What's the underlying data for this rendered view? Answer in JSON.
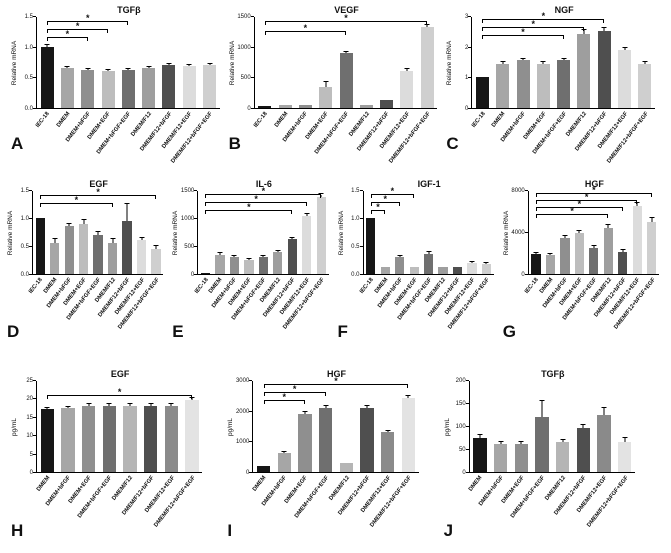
{
  "chart_data": [
    {
      "letter": "A",
      "type": "bar",
      "title": "TGFβ",
      "ylabel": "Relative mRNA",
      "ylim": [
        0,
        1.5
      ],
      "yticks": [
        "0.0",
        "0.5",
        "1.0",
        "1.5"
      ],
      "categories": [
        "IEC-18",
        "DMEM",
        "DMEM+bFGF",
        "DMEM+EGF",
        "DMEM+bFGF+EGF",
        "DMEM/F12",
        "DMEM/F12+bFGF",
        "DMEM/F12+EGF",
        "DMEM/F12+bFGF+EGF"
      ],
      "values": [
        1.0,
        0.65,
        0.62,
        0.6,
        0.62,
        0.65,
        0.7,
        0.68,
        0.7
      ],
      "errors": [
        0.02,
        0.02,
        0.02,
        0.02,
        0.02,
        0.02,
        0.02,
        0.02,
        0.02
      ],
      "colors": [
        "#161616",
        "#a6a6a6",
        "#8f8f8f",
        "#bdbdbd",
        "#6f6f6f",
        "#9e9e9e",
        "#4f4f4f",
        "#dcdcdc",
        "#cfcfcf"
      ],
      "brackets": [
        {
          "from": 0,
          "to": 4,
          "top": 4,
          "label": "*"
        },
        {
          "from": 0,
          "to": 3,
          "top": 12,
          "label": "*"
        },
        {
          "from": 0,
          "to": 2,
          "top": 20,
          "label": "*"
        }
      ]
    },
    {
      "letter": "B",
      "type": "bar",
      "title": "VEGF",
      "ylabel": "Relative mRNA",
      "ylim": [
        0,
        1500
      ],
      "yticks": [
        "0",
        "500",
        "1000",
        "1500"
      ],
      "categories": [
        "IEC-18",
        "DMEM",
        "DMEM+bFGF",
        "DMEM+EGF",
        "DMEM+bFGF+EGF",
        "DMEM/F12",
        "DMEM/F12+bFGF",
        "DMEM/F12+EGF",
        "DMEM/F12+bFGF+EGF"
      ],
      "values": [
        40,
        55,
        55,
        340,
        890,
        55,
        130,
        610,
        1320
      ],
      "errors": [
        5,
        5,
        5,
        90,
        25,
        5,
        10,
        20,
        30
      ],
      "colors": [
        "#161616",
        "#a6a6a6",
        "#8f8f8f",
        "#bdbdbd",
        "#6f6f6f",
        "#9e9e9e",
        "#4f4f4f",
        "#dcdcdc",
        "#cfcfcf"
      ],
      "brackets": [
        {
          "from": 0,
          "to": 8,
          "top": 4,
          "label": "*"
        },
        {
          "from": 0,
          "to": 4,
          "top": 14,
          "label": "*"
        }
      ]
    },
    {
      "letter": "C",
      "type": "bar",
      "title": "NGF",
      "ylabel": "Relative mRNA",
      "ylim": [
        0,
        3
      ],
      "yticks": [
        "0",
        "1",
        "2",
        "3"
      ],
      "categories": [
        "IEC-18",
        "DMEM",
        "DMEM+bFGF",
        "DMEM+EGF",
        "DMEM+bFGF+EGF",
        "DMEM/F12",
        "DMEM/F12+bFGF",
        "DMEM/F12+EGF",
        "DMEM/F12+bFGF+EGF"
      ],
      "values": [
        1.0,
        1.45,
        1.55,
        1.45,
        1.55,
        2.4,
        2.5,
        1.9,
        1.45
      ],
      "errors": [
        0.03,
        0.05,
        0.05,
        0.05,
        0.05,
        0.15,
        0.1,
        0.05,
        0.05
      ],
      "colors": [
        "#161616",
        "#a6a6a6",
        "#8f8f8f",
        "#bdbdbd",
        "#6f6f6f",
        "#9e9e9e",
        "#4f4f4f",
        "#dcdcdc",
        "#cfcfcf"
      ],
      "brackets": [
        {
          "from": 0,
          "to": 6,
          "top": 2,
          "label": "*"
        },
        {
          "from": 0,
          "to": 5,
          "top": 10,
          "label": "*"
        },
        {
          "from": 0,
          "to": 4,
          "top": 18,
          "label": "*"
        }
      ]
    },
    {
      "letter": "D",
      "type": "bar",
      "title": "EGF",
      "ylabel": "Relative mRNA",
      "ylim": [
        0,
        1.5
      ],
      "yticks": [
        "0.0",
        "0.5",
        "1.0",
        "1.5"
      ],
      "categories": [
        "IEC-18",
        "DMEM",
        "DMEM+bFGF",
        "DMEM+EGF",
        "DMEM+bFGF+EGF",
        "DMEM/F12",
        "DMEM/F12+bFGF",
        "DMEM/F12+EGF",
        "DMEM/F12+bFGF+EGF"
      ],
      "values": [
        1.0,
        0.55,
        0.85,
        0.9,
        0.7,
        0.55,
        0.95,
        0.6,
        0.45
      ],
      "errors": [
        0,
        0.07,
        0.05,
        0.06,
        0.05,
        0.08,
        0.3,
        0.05,
        0.05
      ],
      "colors": [
        "#161616",
        "#a6a6a6",
        "#8f8f8f",
        "#bdbdbd",
        "#6f6f6f",
        "#9e9e9e",
        "#4f4f4f",
        "#dcdcdc",
        "#cfcfcf"
      ],
      "brackets": [
        {
          "from": 0,
          "to": 8,
          "top": 4,
          "label": "*"
        },
        {
          "from": 0,
          "to": 5,
          "top": 12,
          "label": "*"
        }
      ]
    },
    {
      "letter": "E",
      "type": "bar",
      "title": "IL-6",
      "ylabel": "Relative mRNA",
      "ylim": [
        0,
        1500
      ],
      "yticks": [
        "0",
        "500",
        "1000",
        "1500"
      ],
      "categories": [
        "IEC-18",
        "DMEM",
        "DMEM+bFGF",
        "DMEM+EGF",
        "DMEM+bFGF+EGF",
        "DMEM/F12",
        "DMEM/F12+bFGF",
        "DMEM/F12+EGF",
        "DMEM/F12+bFGF+EGF"
      ],
      "values": [
        15,
        340,
        300,
        250,
        300,
        390,
        620,
        1040,
        1380
      ],
      "errors": [
        0,
        30,
        20,
        20,
        20,
        20,
        30,
        30,
        40
      ],
      "colors": [
        "#161616",
        "#a6a6a6",
        "#8f8f8f",
        "#bdbdbd",
        "#6f6f6f",
        "#9e9e9e",
        "#4f4f4f",
        "#dcdcdc",
        "#cfcfcf"
      ],
      "brackets": [
        {
          "from": 0,
          "to": 8,
          "top": 3,
          "label": "*"
        },
        {
          "from": 0,
          "to": 7,
          "top": 11,
          "label": "*"
        },
        {
          "from": 0,
          "to": 6,
          "top": 19,
          "label": "*"
        }
      ]
    },
    {
      "letter": "F",
      "type": "bar",
      "title": "IGF-1",
      "ylabel": "Relative mRNA",
      "ylim": [
        0,
        1.5
      ],
      "yticks": [
        "0.0",
        "0.5",
        "1.0",
        "1.5"
      ],
      "categories": [
        "IEC-18",
        "DMEM",
        "DMEM+bFGF",
        "DMEM+EGF",
        "DMEM+bFGF+EGF",
        "DMEM/F12",
        "DMEM/F12+bFGF",
        "DMEM/F12+EGF",
        "DMEM/F12+bFGF+EGF"
      ],
      "values": [
        1.0,
        0.12,
        0.3,
        0.13,
        0.35,
        0.13,
        0.13,
        0.2,
        0.18
      ],
      "errors": [
        0,
        0.01,
        0.03,
        0.01,
        0.04,
        0.01,
        0.01,
        0.02,
        0.02
      ],
      "colors": [
        "#161616",
        "#a6a6a6",
        "#8f8f8f",
        "#bdbdbd",
        "#6f6f6f",
        "#9e9e9e",
        "#4f4f4f",
        "#dcdcdc",
        "#cfcfcf"
      ],
      "brackets": [
        {
          "from": 0,
          "to": 3,
          "top": 3,
          "label": "*"
        },
        {
          "from": 0,
          "to": 2,
          "top": 11,
          "label": "*"
        },
        {
          "from": 0,
          "to": 1,
          "top": 19,
          "label": "*"
        }
      ]
    },
    {
      "letter": "G",
      "type": "bar",
      "title": "HGF",
      "ylabel": "Relative mRNA",
      "ylim": [
        0,
        8000
      ],
      "yticks": [
        "0",
        "4000",
        "8000"
      ],
      "categories": [
        "IEC-18",
        "DMEM",
        "DMEM+bFGF",
        "DMEM+EGF",
        "DMEM+bFGF+EGF",
        "DMEM/F12",
        "DMEM/F12+bFGF",
        "DMEM/F12+EGF",
        "DMEM/F12+bFGF+EGF"
      ],
      "values": [
        1900,
        1800,
        3400,
        3900,
        2500,
        4400,
        2100,
        6500,
        5000
      ],
      "errors": [
        100,
        100,
        200,
        200,
        150,
        300,
        150,
        300,
        300
      ],
      "colors": [
        "#161616",
        "#a6a6a6",
        "#8f8f8f",
        "#bdbdbd",
        "#6f6f6f",
        "#9e9e9e",
        "#4f4f4f",
        "#dcdcdc",
        "#cfcfcf"
      ],
      "brackets": [
        {
          "from": 0,
          "to": 8,
          "top": 2,
          "label": "*"
        },
        {
          "from": 0,
          "to": 7,
          "top": 9,
          "label": "*"
        },
        {
          "from": 0,
          "to": 6,
          "top": 16,
          "label": "*"
        },
        {
          "from": 0,
          "to": 5,
          "top": 23,
          "label": "*"
        }
      ]
    },
    {
      "letter": "H",
      "type": "bar",
      "title": "EGF",
      "ylabel": "pg/mL",
      "ylim": [
        0,
        25
      ],
      "yticks": [
        "0",
        "5",
        "10",
        "15",
        "20",
        "25"
      ],
      "categories": [
        "DMEM",
        "DMEM+bFGF",
        "DMEM+EGF",
        "DMEM+bFGF+EGF",
        "DMEM/F12",
        "DMEM/F12+bFGF",
        "DMEM/F12+EGF",
        "DMEM/F12+bFGF+EGF"
      ],
      "values": [
        17,
        17.5,
        18,
        18,
        18,
        18,
        18,
        19.5
      ],
      "errors": [
        0.3,
        0.3,
        0.4,
        0.4,
        0.4,
        0.4,
        0.4,
        0.5
      ],
      "colors": [
        "#161616",
        "#a6a6a6",
        "#8f8f8f",
        "#6f6f6f",
        "#b5b5b5",
        "#4f4f4f",
        "#8a8a8a",
        "#e3e3e3"
      ],
      "brackets": [
        {
          "from": 0,
          "to": 7,
          "top": 14,
          "label": "*"
        }
      ]
    },
    {
      "letter": "I",
      "type": "bar",
      "title": "HGF",
      "ylabel": "pg/mL",
      "ylim": [
        0,
        3000
      ],
      "yticks": [
        "0",
        "1000",
        "2000",
        "3000"
      ],
      "categories": [
        "DMEM",
        "DMEM+bFGF",
        "DMEM+EGF",
        "DMEM+bFGF+EGF",
        "DMEM/F12",
        "DMEM/F12+bFGF",
        "DMEM/F12+EGF",
        "DMEM/F12+bFGF+EGF"
      ],
      "values": [
        200,
        620,
        1900,
        2100,
        300,
        2100,
        1300,
        2400
      ],
      "errors": [
        20,
        40,
        60,
        60,
        20,
        60,
        50,
        80
      ],
      "colors": [
        "#161616",
        "#a6a6a6",
        "#8f8f8f",
        "#6f6f6f",
        "#b5b5b5",
        "#4f4f4f",
        "#8a8a8a",
        "#e3e3e3"
      ],
      "brackets": [
        {
          "from": 0,
          "to": 7,
          "top": 3,
          "label": "*"
        },
        {
          "from": 0,
          "to": 3,
          "top": 11,
          "label": "*"
        },
        {
          "from": 0,
          "to": 2,
          "top": 19,
          "label": "*"
        }
      ]
    },
    {
      "letter": "J",
      "type": "bar",
      "title": "TGFβ",
      "ylabel": "pg/mL",
      "ylim": [
        0,
        200
      ],
      "yticks": [
        "0",
        "50",
        "100",
        "150",
        "200"
      ],
      "categories": [
        "DMEM",
        "DMEM+bFGF",
        "DMEM+EGF",
        "DMEM+bFGF+EGF",
        "DMEM/F12",
        "DMEM/F12+bFGF",
        "DMEM/F12+EGF",
        "DMEM/F12+bFGF+EGF"
      ],
      "values": [
        75,
        60,
        60,
        120,
        65,
        95,
        125,
        65
      ],
      "errors": [
        5,
        5,
        5,
        35,
        5,
        8,
        15,
        10
      ],
      "colors": [
        "#161616",
        "#a6a6a6",
        "#8f8f8f",
        "#6f6f6f",
        "#b5b5b5",
        "#4f4f4f",
        "#8a8a8a",
        "#e3e3e3"
      ],
      "brackets": []
    }
  ]
}
